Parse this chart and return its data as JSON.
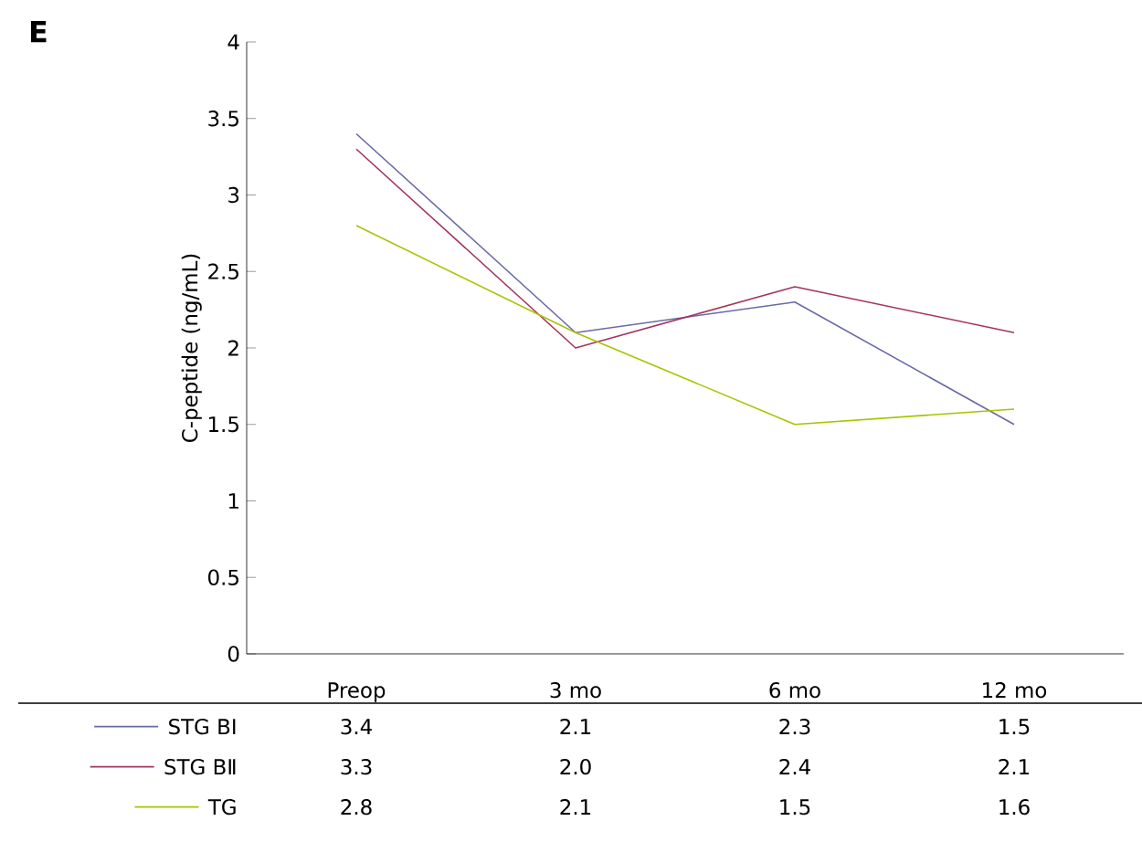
{
  "chart_data": {
    "type": "line",
    "ylabel": "C-peptide (ng/mL)",
    "annotations": [
      "E"
    ],
    "categories": [
      "Preop",
      "3 mo",
      "6 mo",
      "12 mo"
    ],
    "series": [
      {
        "name": "STG BⅠ",
        "color": "#6a6aa8",
        "values": [
          3.4,
          2.1,
          2.3,
          1.5
        ],
        "value_labels": [
          "3.4",
          "2.1",
          "2.3",
          "1.5"
        ]
      },
      {
        "name": "STG BⅡ",
        "color": "#a3345e",
        "values": [
          3.3,
          2.0,
          2.4,
          2.1
        ],
        "value_labels": [
          "3.3",
          "2.0",
          "2.4",
          "2.1"
        ]
      },
      {
        "name": "TG",
        "color": "#a6c400",
        "values": [
          2.8,
          2.1,
          1.5,
          1.6
        ],
        "value_labels": [
          "2.8",
          "2.1",
          "1.5",
          "1.6"
        ]
      }
    ],
    "ylim": [
      0,
      4
    ],
    "yticks": [
      0,
      0.5,
      1,
      1.5,
      2,
      2.5,
      3,
      3.5,
      4
    ],
    "grid": false,
    "legend": "bottom left",
    "marker": "none",
    "line_style": "solid"
  }
}
